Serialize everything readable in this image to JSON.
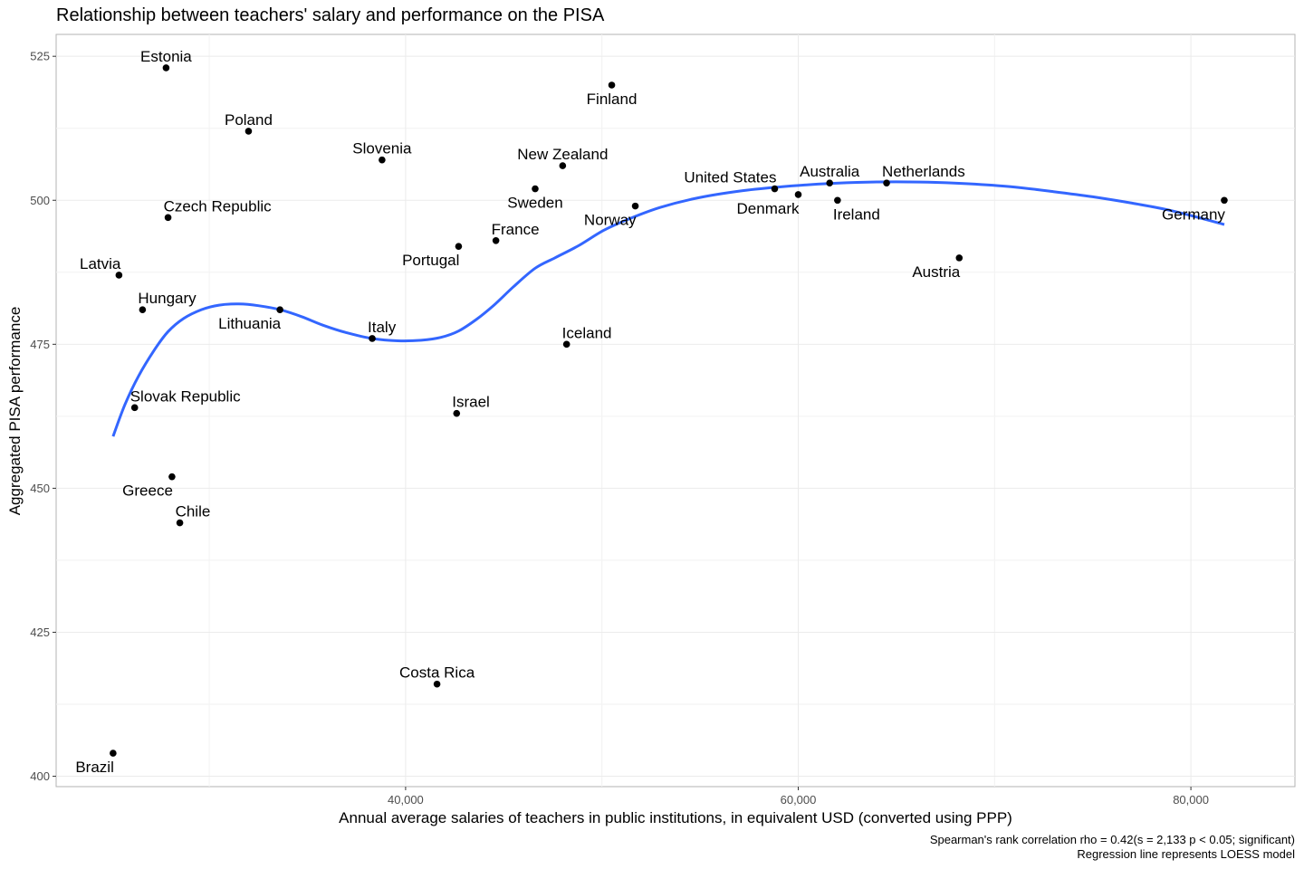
{
  "chart_data": {
    "type": "scatter",
    "title": "Relationship between teachers' salary and performance on the PISA",
    "xlabel": "Annual average salaries of teachers in public institutions, in equivalent USD (converted using PPP)",
    "ylabel": "Aggregated PISA performance",
    "caption_line1": "Spearman's rank correlation rho = 0.42(s = 2,133 p < 0.05; significant)",
    "caption_line2": "Regression line represents LOESS model",
    "xlim": [
      22200,
      85300
    ],
    "ylim": [
      398.2,
      528.8
    ],
    "x_ticks": [
      {
        "value": 40000,
        "label": "40,000"
      },
      {
        "value": 60000,
        "label": "60,000"
      },
      {
        "value": 80000,
        "label": "80,000"
      }
    ],
    "y_ticks": [
      {
        "value": 400,
        "label": "400"
      },
      {
        "value": 425,
        "label": "425"
      },
      {
        "value": 450,
        "label": "450"
      },
      {
        "value": 475,
        "label": "475"
      },
      {
        "value": 500,
        "label": "500"
      },
      {
        "value": 525,
        "label": "525"
      }
    ],
    "grid": true,
    "point_color": "#000000",
    "line_color": "#3366ff",
    "points": [
      {
        "name": "Estonia",
        "x": 27800,
        "y": 523,
        "pos": "above"
      },
      {
        "name": "Finland",
        "x": 50500,
        "y": 520,
        "pos": "below"
      },
      {
        "name": "Poland",
        "x": 32000,
        "y": 512,
        "pos": "above"
      },
      {
        "name": "Slovenia",
        "x": 38800,
        "y": 507,
        "pos": "above"
      },
      {
        "name": "New Zealand",
        "x": 48000,
        "y": 506,
        "pos": "above"
      },
      {
        "name": "Sweden",
        "x": 46600,
        "y": 502,
        "pos": "below"
      },
      {
        "name": "United States",
        "x": 58800,
        "y": 502,
        "pos": "aboveleft"
      },
      {
        "name": "Australia",
        "x": 61600,
        "y": 503,
        "pos": "above"
      },
      {
        "name": "Netherlands",
        "x": 64500,
        "y": 503,
        "pos": "aboveright"
      },
      {
        "name": "Denmark",
        "x": 60000,
        "y": 501,
        "pos": "belowleft"
      },
      {
        "name": "Ireland",
        "x": 62000,
        "y": 500,
        "pos": "belowright"
      },
      {
        "name": "Germany",
        "x": 81700,
        "y": 500,
        "pos": "belowleft"
      },
      {
        "name": "Norway",
        "x": 51700,
        "y": 499,
        "pos": "belowleft"
      },
      {
        "name": "Czech Republic",
        "x": 27900,
        "y": 497,
        "pos": "aboveright"
      },
      {
        "name": "France",
        "x": 44600,
        "y": 493,
        "pos": "aboveright"
      },
      {
        "name": "Portugal",
        "x": 42700,
        "y": 492,
        "pos": "belowleft"
      },
      {
        "name": "Austria",
        "x": 68200,
        "y": 490,
        "pos": "belowleft"
      },
      {
        "name": "Latvia",
        "x": 25400,
        "y": 487,
        "pos": "aboveleft"
      },
      {
        "name": "Hungary",
        "x": 26600,
        "y": 481,
        "pos": "aboveright"
      },
      {
        "name": "Lithuania",
        "x": 33600,
        "y": 481,
        "pos": "belowleft"
      },
      {
        "name": "Italy",
        "x": 38300,
        "y": 476,
        "pos": "aboveright"
      },
      {
        "name": "Iceland",
        "x": 48200,
        "y": 475,
        "pos": "aboveright"
      },
      {
        "name": "Slovak Republic",
        "x": 26200,
        "y": 464,
        "pos": "aboveright"
      },
      {
        "name": "Israel",
        "x": 42600,
        "y": 463,
        "pos": "aboveright"
      },
      {
        "name": "Greece",
        "x": 28100,
        "y": 452,
        "pos": "belowleft"
      },
      {
        "name": "Chile",
        "x": 28500,
        "y": 444,
        "pos": "aboveright"
      },
      {
        "name": "Costa Rica",
        "x": 41600,
        "y": 416,
        "pos": "above"
      },
      {
        "name": "Brazil",
        "x": 25100,
        "y": 404,
        "pos": "belowleft"
      }
    ],
    "loess": [
      [
        25100,
        459
      ],
      [
        25700,
        464.5
      ],
      [
        26400,
        469.5
      ],
      [
        27200,
        474
      ],
      [
        27900,
        477.2
      ],
      [
        28700,
        479.5
      ],
      [
        29600,
        481
      ],
      [
        30500,
        481.8
      ],
      [
        31500,
        482
      ],
      [
        32500,
        481.7
      ],
      [
        33600,
        481
      ],
      [
        34700,
        479.8
      ],
      [
        35800,
        478.3
      ],
      [
        37000,
        477
      ],
      [
        38300,
        476
      ],
      [
        39600,
        475.6
      ],
      [
        40800,
        475.7
      ],
      [
        41800,
        476.2
      ],
      [
        42700,
        477.3
      ],
      [
        43600,
        479.3
      ],
      [
        44500,
        481.8
      ],
      [
        45500,
        485
      ],
      [
        46600,
        488.2
      ],
      [
        47600,
        490
      ],
      [
        48800,
        492.1
      ],
      [
        50100,
        494.8
      ],
      [
        51400,
        496.8
      ],
      [
        53000,
        498.8
      ],
      [
        55000,
        500.5
      ],
      [
        57000,
        501.6
      ],
      [
        59000,
        502.3
      ],
      [
        61000,
        502.8
      ],
      [
        63000,
        503.1
      ],
      [
        65000,
        503.2
      ],
      [
        67000,
        503.1
      ],
      [
        69000,
        502.8
      ],
      [
        71000,
        502.3
      ],
      [
        73000,
        501.5
      ],
      [
        75000,
        500.6
      ],
      [
        77000,
        499.5
      ],
      [
        79000,
        498.2
      ],
      [
        81700,
        495.8
      ]
    ]
  }
}
